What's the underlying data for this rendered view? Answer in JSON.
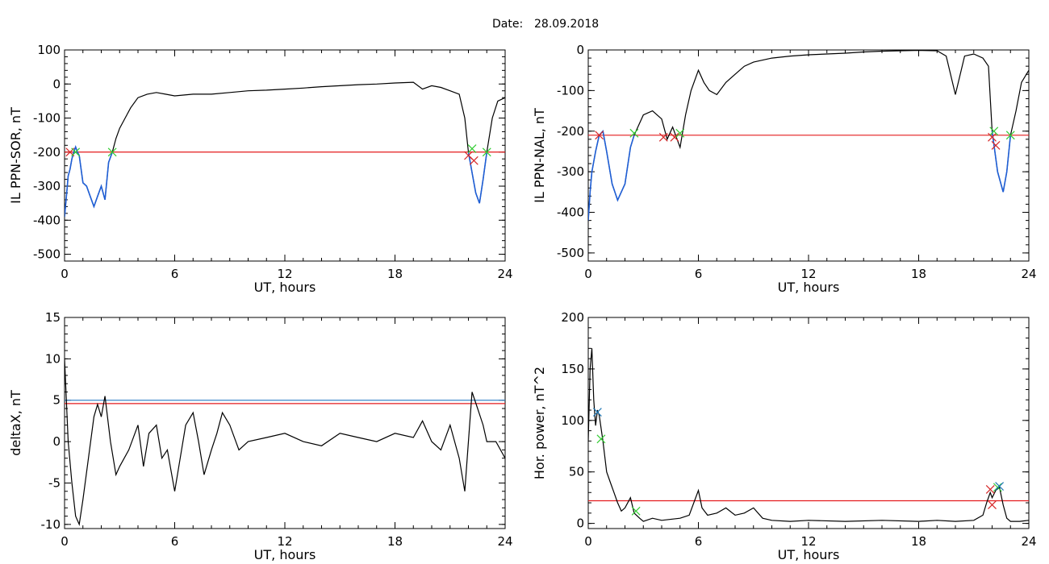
{
  "header": {
    "date_label": "Date:",
    "date_value": "28.09.2018"
  },
  "colors": {
    "trace": "#000000",
    "highlight": "#1f5fd6",
    "threshold_red": "#e41a1c",
    "threshold_blue": "#3a86c8",
    "mark_green": "#33cc33",
    "mark_red": "#d62728",
    "mark_blue": "#1f77b4"
  },
  "chart_data": [
    {
      "type": "line",
      "ylabel": "IL PPN-SOR, nT",
      "xlabel": "UT, hours",
      "xlim": [
        0,
        24
      ],
      "ylim": [
        -520,
        100
      ],
      "xticks": [
        "0",
        "6",
        "12",
        "18",
        "24"
      ],
      "yticks": [
        "100",
        "0",
        "-100",
        "-200",
        "-300",
        "-400",
        "-500"
      ],
      "x": [
        0,
        0.1,
        0.2,
        0.3,
        0.4,
        0.5,
        0.6,
        0.7,
        0.8,
        1.0,
        1.2,
        1.4,
        1.6,
        1.8,
        2.0,
        2.2,
        2.4,
        2.6,
        2.8,
        3.0,
        3.3,
        3.6,
        4.0,
        4.5,
        5.0,
        5.5,
        6.0,
        7.0,
        8.0,
        9.0,
        10.0,
        11.0,
        12.0,
        13.0,
        14.0,
        15.0,
        16.0,
        17.0,
        18.0,
        19.0,
        19.5,
        20.0,
        20.5,
        21.0,
        21.5,
        21.8,
        22.0,
        22.2,
        22.4,
        22.6,
        22.8,
        23.0,
        23.3,
        23.6,
        24.0
      ],
      "series": [
        {
          "values": [
            -390,
            -330,
            -270,
            -250,
            -220,
            -200,
            -185,
            -200,
            -210,
            -290,
            -300,
            -330,
            -360,
            -330,
            -300,
            -340,
            -230,
            -200,
            -160,
            -130,
            -100,
            -70,
            -40,
            -30,
            -25,
            -30,
            -35,
            -30,
            -30,
            -25,
            -20,
            -18,
            -15,
            -12,
            -8,
            -5,
            -2,
            0,
            3,
            5,
            -15,
            -5,
            -10,
            -20,
            -30,
            -100,
            -200,
            -260,
            -320,
            -350,
            -280,
            -200,
            -100,
            -50,
            -40
          ]
        }
      ],
      "threshold_lines": [
        {
          "value": -200,
          "color": "red"
        }
      ],
      "markers": [
        {
          "x": 0.3,
          "y": -200,
          "color": "red"
        },
        {
          "x": 0.6,
          "y": -200,
          "color": "green"
        },
        {
          "x": 2.6,
          "y": -200,
          "color": "green"
        },
        {
          "x": 22.0,
          "y": -210,
          "color": "red"
        },
        {
          "x": 22.2,
          "y": -190,
          "color": "green"
        },
        {
          "x": 22.3,
          "y": -225,
          "color": "red"
        },
        {
          "x": 23.0,
          "y": -200,
          "color": "green"
        }
      ],
      "highlight_x_ranges": [
        [
          0,
          2.6
        ],
        [
          21.9,
          23.0
        ]
      ]
    },
    {
      "type": "line",
      "ylabel": "IL PPN-NAL, nT",
      "xlabel": "UT, hours",
      "xlim": [
        0,
        24
      ],
      "ylim": [
        -520,
        0
      ],
      "xticks": [
        "0",
        "6",
        "12",
        "18",
        "24"
      ],
      "yticks": [
        "0",
        "-100",
        "-200",
        "-300",
        "-400",
        "-500"
      ],
      "x": [
        0,
        0.1,
        0.2,
        0.4,
        0.6,
        0.8,
        1.0,
        1.3,
        1.6,
        2.0,
        2.3,
        2.5,
        2.8,
        3.0,
        3.5,
        4.0,
        4.3,
        4.6,
        5.0,
        5.3,
        5.6,
        6.0,
        6.3,
        6.6,
        7.0,
        7.5,
        8.0,
        8.5,
        9.0,
        10.0,
        11.0,
        12.0,
        13.0,
        14.0,
        15.0,
        16.0,
        17.0,
        18.0,
        19.0,
        19.5,
        20.0,
        20.5,
        21.0,
        21.5,
        21.8,
        22.0,
        22.3,
        22.6,
        22.8,
        23.0,
        23.3,
        23.6,
        24.0
      ],
      "series": [
        {
          "values": [
            -420,
            -350,
            -300,
            -250,
            -210,
            -200,
            -250,
            -330,
            -370,
            -330,
            -240,
            -210,
            -180,
            -160,
            -150,
            -170,
            -220,
            -190,
            -240,
            -160,
            -100,
            -50,
            -80,
            -100,
            -110,
            -80,
            -60,
            -40,
            -30,
            -20,
            -15,
            -12,
            -10,
            -8,
            -5,
            -3,
            -2,
            -1,
            -2,
            -15,
            -110,
            -15,
            -10,
            -20,
            -40,
            -200,
            -300,
            -350,
            -300,
            -210,
            -150,
            -80,
            -50
          ]
        }
      ],
      "threshold_lines": [
        {
          "value": -210,
          "color": "red"
        }
      ],
      "markers": [
        {
          "x": 0.6,
          "y": -210,
          "color": "red"
        },
        {
          "x": 2.5,
          "y": -205,
          "color": "green"
        },
        {
          "x": 4.1,
          "y": -215,
          "color": "red"
        },
        {
          "x": 4.7,
          "y": -215,
          "color": "red"
        },
        {
          "x": 5.0,
          "y": -205,
          "color": "green"
        },
        {
          "x": 22.0,
          "y": -215,
          "color": "red"
        },
        {
          "x": 22.1,
          "y": -200,
          "color": "green"
        },
        {
          "x": 22.2,
          "y": -235,
          "color": "red"
        },
        {
          "x": 23.0,
          "y": -210,
          "color": "green"
        }
      ],
      "highlight_x_ranges": [
        [
          0,
          2.5
        ],
        [
          21.9,
          23.0
        ]
      ]
    },
    {
      "type": "line",
      "ylabel": "deltaX, nT",
      "xlabel": "UT, hours",
      "xlim": [
        0,
        24
      ],
      "ylim": [
        -10.5,
        15
      ],
      "xticks": [
        "0",
        "6",
        "12",
        "18",
        "24"
      ],
      "yticks": [
        "15",
        "10",
        "5",
        "0",
        "-5",
        "-10"
      ],
      "x": [
        0,
        0.2,
        0.4,
        0.6,
        0.8,
        1.0,
        1.3,
        1.6,
        1.8,
        2.0,
        2.2,
        2.5,
        2.8,
        3.0,
        3.5,
        4.0,
        4.3,
        4.6,
        5.0,
        5.3,
        5.6,
        6.0,
        6.3,
        6.6,
        7.0,
        7.3,
        7.6,
        8.0,
        8.3,
        8.6,
        9.0,
        9.5,
        10.0,
        11.0,
        12.0,
        13.0,
        14.0,
        15.0,
        16.0,
        17.0,
        18.0,
        19.0,
        19.5,
        20.0,
        20.5,
        21.0,
        21.5,
        21.8,
        22.0,
        22.2,
        22.5,
        22.8,
        23.0,
        23.5,
        24.0
      ],
      "series": [
        {
          "values": [
            10,
            0,
            -5,
            -9,
            -10,
            -7,
            -2,
            3,
            4.5,
            3,
            5.5,
            0,
            -4,
            -3,
            -1,
            2,
            -3,
            1,
            2,
            -2,
            -1,
            -6,
            -2,
            2,
            3.5,
            0,
            -4,
            -1,
            1,
            3.5,
            2,
            -1,
            0,
            0.5,
            1,
            0,
            -0.5,
            1,
            0.5,
            0,
            1,
            0.5,
            2.5,
            0,
            -1,
            2,
            -2,
            -6,
            0,
            6,
            4,
            2,
            0,
            0,
            -2
          ]
        }
      ],
      "threshold_lines": [
        {
          "value": 5.0,
          "color": "blue"
        },
        {
          "value": 4.6,
          "color": "red"
        }
      ],
      "markers": [],
      "highlight_x_ranges": []
    },
    {
      "type": "line",
      "ylabel": "Hor. power, nT^2",
      "xlabel": "UT, hours",
      "xlim": [
        0,
        24
      ],
      "ylim": [
        -5,
        200
      ],
      "xticks": [
        "0",
        "6",
        "12",
        "18",
        "24"
      ],
      "yticks": [
        "200",
        "150",
        "100",
        "50",
        "0"
      ],
      "x": [
        0,
        0.1,
        0.2,
        0.3,
        0.4,
        0.5,
        0.6,
        0.8,
        1.0,
        1.2,
        1.4,
        1.6,
        1.8,
        2.0,
        2.3,
        2.5,
        2.8,
        3.0,
        3.5,
        4.0,
        5.0,
        5.5,
        6.0,
        6.2,
        6.5,
        7.0,
        7.5,
        8.0,
        8.5,
        9.0,
        9.5,
        10.0,
        11.0,
        12.0,
        14.0,
        16.0,
        18.0,
        19.0,
        20.0,
        21.0,
        21.5,
        21.7,
        21.9,
        22.0,
        22.2,
        22.4,
        22.6,
        22.8,
        23.0,
        23.5,
        24.0
      ],
      "series": [
        {
          "values": [
            80,
            150,
            170,
            120,
            95,
            110,
            105,
            80,
            50,
            40,
            30,
            20,
            12,
            15,
            25,
            10,
            5,
            2,
            5,
            3,
            5,
            8,
            32,
            15,
            8,
            10,
            15,
            8,
            10,
            15,
            5,
            3,
            2,
            3,
            2,
            3,
            2,
            3,
            2,
            3,
            8,
            20,
            30,
            25,
            32,
            35,
            18,
            5,
            2,
            2,
            3
          ]
        }
      ],
      "threshold_lines": [
        {
          "value": 22,
          "color": "red"
        }
      ],
      "markers": [
        {
          "x": 0.5,
          "y": 108,
          "color": "blue"
        },
        {
          "x": 0.7,
          "y": 82,
          "color": "green"
        },
        {
          "x": 2.6,
          "y": 12,
          "color": "green"
        },
        {
          "x": 21.9,
          "y": 33,
          "color": "red"
        },
        {
          "x": 22.0,
          "y": 18,
          "color": "red"
        },
        {
          "x": 22.3,
          "y": 35,
          "color": "green"
        },
        {
          "x": 22.4,
          "y": 36,
          "color": "blue"
        }
      ],
      "highlight_x_ranges": []
    }
  ]
}
